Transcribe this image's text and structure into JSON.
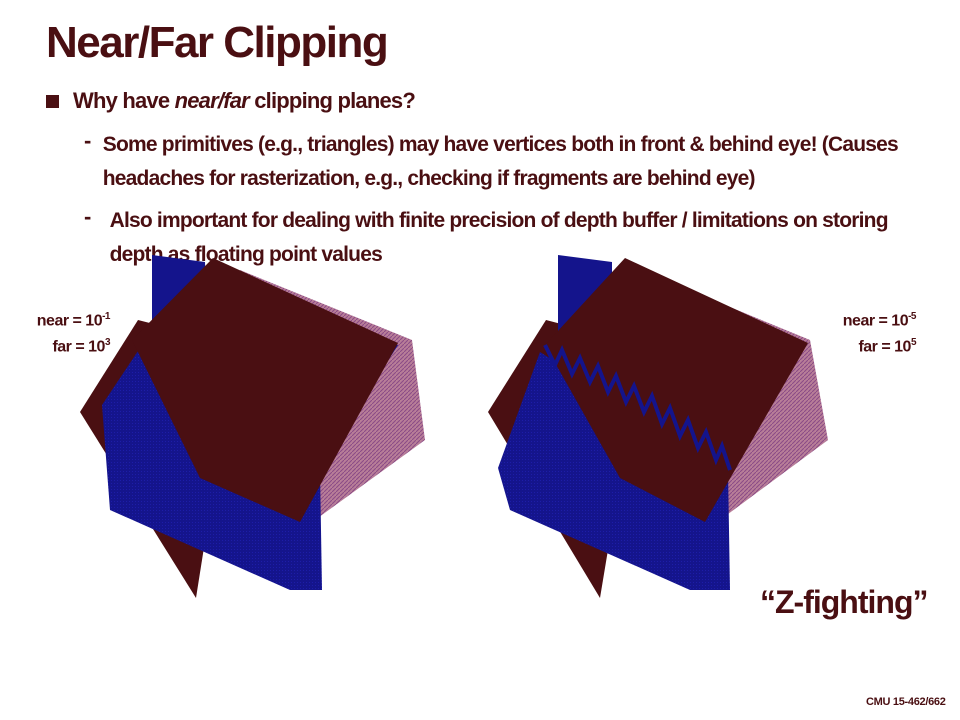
{
  "slide": {
    "title": "Near/Far Clipping",
    "bullet": {
      "prefix": "Why have ",
      "emphasis": "near/far",
      "suffix": " clipping planes?"
    },
    "subbullets": [
      {
        "dash": "-",
        "text": "Some primitives (e.g., triangles) may have vertices both in front & behind eye! (Causes headaches for rasterization, e.g., checking if fragments are behind eye)"
      },
      {
        "dash": "-",
        "text": "Also important for dealing with finite precision of depth buffer / limitations on storing depth as floating point values"
      }
    ],
    "left_image": {
      "near_label": "near = 10",
      "near_exp": "-1",
      "far_label": "far = 10",
      "far_exp": "3"
    },
    "right_image": {
      "near_label": "near = 10",
      "near_exp": "-5",
      "far_label": "far = 10",
      "far_exp": "5"
    },
    "caption": "“Z-fighting”",
    "footer": "CMU 15-462/662"
  },
  "colors": {
    "text": "#4a0f12",
    "maroon_face": "#4a0f12",
    "blue_face": "#14148c",
    "pink_face": "#b87e98"
  }
}
